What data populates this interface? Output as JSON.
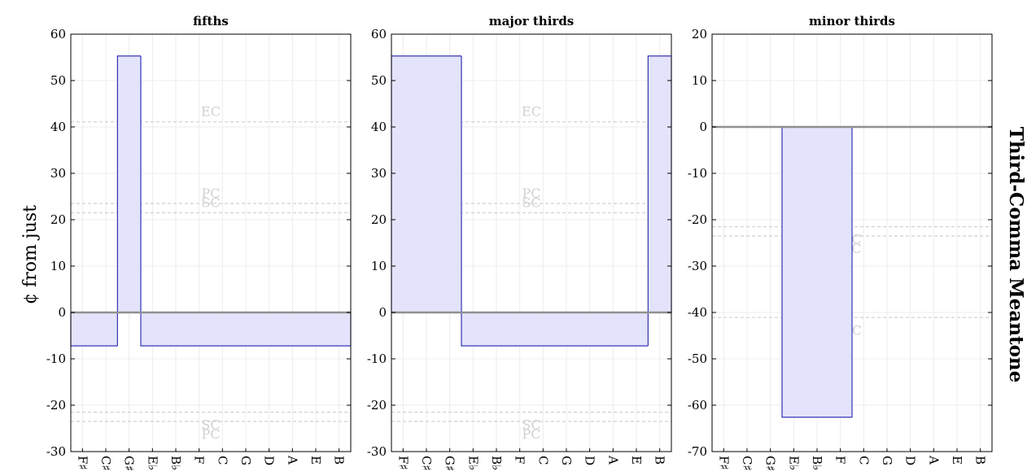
{
  "chart_data": [
    {
      "type": "area",
      "title": "fifths",
      "ylim": [
        -30,
        60
      ],
      "yticks": [
        -30,
        -20,
        -10,
        0,
        10,
        20,
        30,
        40,
        50,
        60
      ],
      "categories": [
        "F♯",
        "C♯",
        "G♯",
        "E♭",
        "B♭",
        "F",
        "C",
        "G",
        "D",
        "A",
        "E",
        "B"
      ],
      "values": [
        -7.2,
        -7.2,
        55.3,
        -7.2,
        -7.2,
        -7.2,
        -7.2,
        -7.2,
        -7.2,
        -7.2,
        -7.2,
        -7.2
      ],
      "reference_lines": [
        {
          "label": "EC",
          "value": 41.1
        },
        {
          "label": "PC",
          "value": 23.5
        },
        {
          "label": "SC",
          "value": 21.5
        },
        {
          "label": "SC",
          "value": -21.5
        },
        {
          "label": "PC",
          "value": -23.5
        }
      ],
      "grid": true
    },
    {
      "type": "area",
      "title": "major thirds",
      "ylim": [
        -30,
        60
      ],
      "yticks": [
        -30,
        -20,
        -10,
        0,
        10,
        20,
        30,
        40,
        50,
        60
      ],
      "categories": [
        "F♯",
        "C♯",
        "G♯",
        "E♭",
        "B♭",
        "F",
        "C",
        "G",
        "D",
        "A",
        "E",
        "B"
      ],
      "values": [
        55.3,
        55.3,
        55.3,
        -7.2,
        -7.2,
        -7.2,
        -7.2,
        -7.2,
        -7.2,
        -7.2,
        -7.2,
        55.3
      ],
      "reference_lines": [
        {
          "label": "EC",
          "value": 41.1
        },
        {
          "label": "PC",
          "value": 23.5
        },
        {
          "label": "SC",
          "value": 21.5
        },
        {
          "label": "SC",
          "value": -21.5
        },
        {
          "label": "PC",
          "value": -23.5
        }
      ],
      "grid": true
    },
    {
      "type": "area",
      "title": "minor thirds",
      "ylim": [
        -70,
        20
      ],
      "yticks": [
        -70,
        -60,
        -50,
        -40,
        -30,
        -20,
        -10,
        0,
        10,
        20
      ],
      "categories": [
        "F♯",
        "C♯",
        "G♯",
        "E♭",
        "B♭",
        "F",
        "C",
        "G",
        "D",
        "A",
        "E",
        "B"
      ],
      "values": [
        0,
        0,
        0,
        -62.6,
        -62.6,
        -62.6,
        0,
        0,
        0,
        0,
        0,
        0
      ],
      "reference_lines": [
        {
          "label": "SC",
          "value": -21.5
        },
        {
          "label": "PC",
          "value": -23.5
        },
        {
          "label": "EC",
          "value": -41.1
        }
      ],
      "grid": true
    }
  ],
  "ylabel": "¢ from just",
  "right_label": "Third-Comma Meantone",
  "colors": {
    "fill": "#e3e3fb",
    "stroke": "#2020b0",
    "zero_line": "#909090",
    "grid": "#ececec",
    "reference": "#d4d4d4"
  }
}
